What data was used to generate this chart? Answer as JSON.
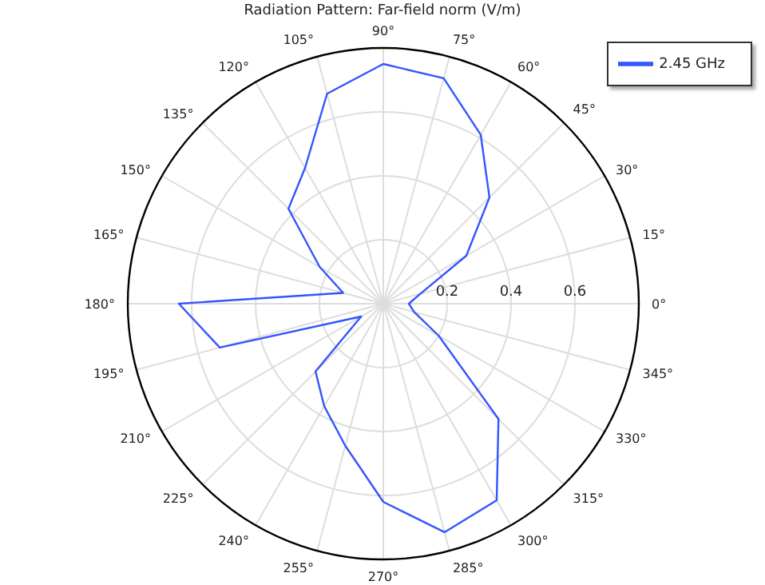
{
  "chart_data": {
    "type": "radar",
    "title": "Radiation Pattern: Far-field norm (V/m)",
    "categories": [
      "90°",
      "75°",
      "60°",
      "45°",
      "30°",
      "15°",
      "0°",
      "345°",
      "330°",
      "315°",
      "300°",
      "285°",
      "270°",
      "255°",
      "240°",
      "225°",
      "210°",
      "195°",
      "180°",
      "165°",
      "150°",
      "135°",
      "120°",
      "105°"
    ],
    "series": [
      {
        "name": "2.45 GHz",
        "color": "#3355ff",
        "values": [
          0.75,
          0.73,
          0.61,
          0.47,
          0.3,
          0.12,
          0.08,
          0.1,
          0.2,
          0.51,
          0.71,
          0.74,
          0.62,
          0.46,
          0.37,
          0.3,
          0.08,
          0.53,
          0.64,
          0.13,
          0.23,
          0.42,
          0.49,
          0.68
        ]
      }
    ],
    "ylim": [
      0,
      0.8
    ],
    "yticks": [
      0.2,
      0.4,
      0.6
    ],
    "grid": true,
    "legend": "top right",
    "marker": "none",
    "line_style": "solid"
  }
}
